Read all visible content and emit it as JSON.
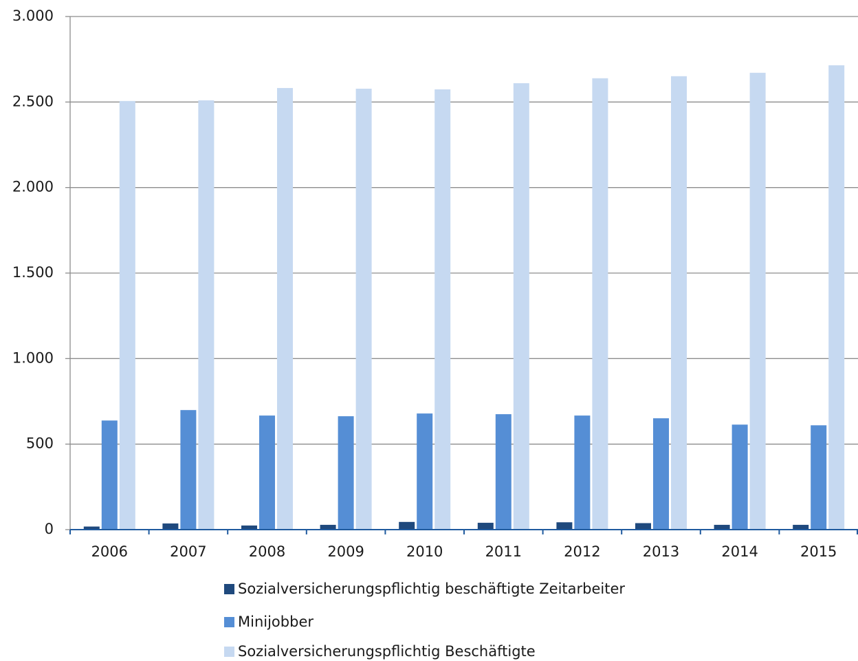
{
  "chart_data": {
    "type": "bar",
    "categories": [
      "2006",
      "2007",
      "2008",
      "2009",
      "2010",
      "2011",
      "2012",
      "2013",
      "2014",
      "2015"
    ],
    "series": [
      {
        "name": "Sozialversicherungspflichtig beschäftigte Zeitarbeiter",
        "color": "#1f497d",
        "values": [
          18,
          36,
          24,
          28,
          45,
          40,
          43,
          38,
          28,
          28
        ]
      },
      {
        "name": "Minijobber",
        "color": "#558ed5",
        "values": [
          638,
          699,
          667,
          663,
          679,
          675,
          667,
          651,
          614,
          610
        ]
      },
      {
        "name": "Sozialversicherungspflichtig Beschäftigte",
        "color": "#c6d9f1",
        "values": [
          2506,
          2510,
          2582,
          2578,
          2574,
          2610,
          2639,
          2651,
          2671,
          2715
        ]
      }
    ],
    "ylim": [
      0,
      3000
    ],
    "yticks": [
      0,
      500,
      {
        "value": 1000,
        "label": "1.000"
      },
      {
        "value": 1500,
        "label": "1.500"
      },
      {
        "value": 2000,
        "label": "2.000"
      },
      {
        "value": 2500,
        "label": "2.500"
      },
      {
        "value": 3000,
        "label": "3.000"
      }
    ],
    "grid": true,
    "legend": "bottom"
  }
}
